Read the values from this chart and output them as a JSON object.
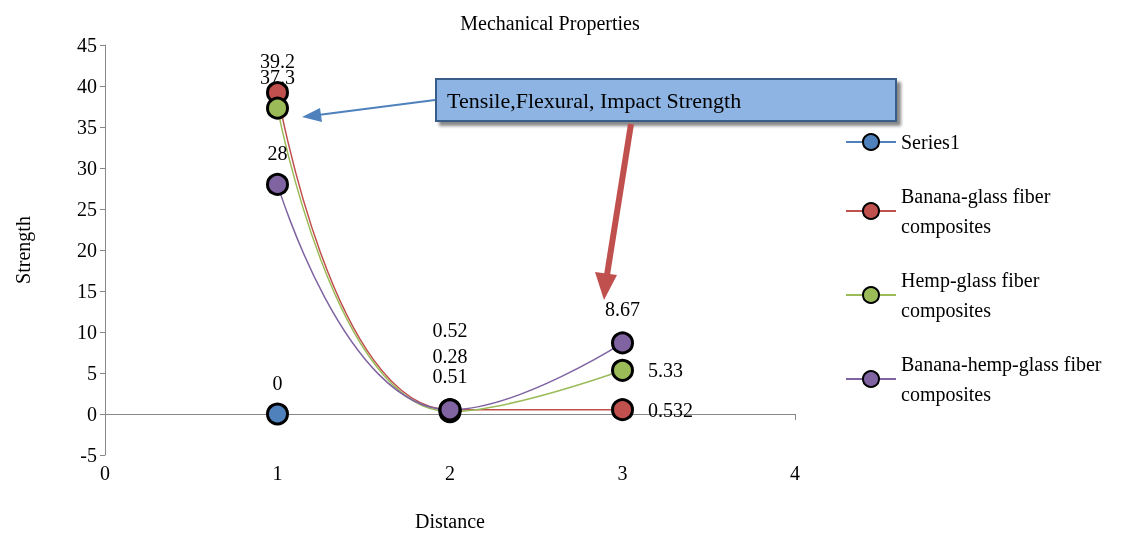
{
  "chart_data": {
    "type": "line",
    "title": "Mechanical Properties",
    "xlabel": "Distance",
    "ylabel": "Strength",
    "annotations": [
      "Tensile,Flexural, Impact Strength"
    ],
    "xlim": [
      0,
      4
    ],
    "xticks": [
      0,
      1,
      2,
      3,
      4
    ],
    "ylim": [
      -5,
      45
    ],
    "yticks": [
      -5,
      0,
      5,
      10,
      15,
      20,
      25,
      30,
      35,
      40,
      45
    ],
    "series": [
      {
        "name": "Series1",
        "color": "#4f81bd",
        "x": [
          1
        ],
        "values": [
          0
        ]
      },
      {
        "name": "Banana-glass fiber composites",
        "color": "#c0504d",
        "x": [
          1,
          2,
          3
        ],
        "values": [
          39.2,
          0.52,
          0.532
        ]
      },
      {
        "name": "Hemp-glass fiber composites",
        "color": "#9bbb59",
        "x": [
          1,
          2,
          3
        ],
        "values": [
          37.3,
          0.28,
          5.33
        ]
      },
      {
        "name": "Banana-hemp-glass fiber composites",
        "color": "#8064a2",
        "x": [
          1,
          2,
          3
        ],
        "values": [
          28,
          0.51,
          8.67
        ]
      }
    ],
    "data_labels": true,
    "marker": "circle",
    "line_style": "solid",
    "grid": false,
    "legend": "right"
  }
}
